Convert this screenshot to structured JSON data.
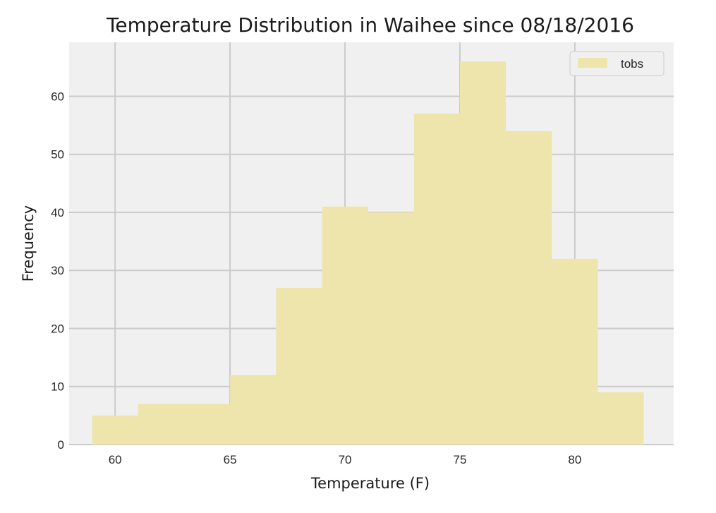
{
  "chart_data": {
    "type": "bar",
    "title": "Temperature Distribution in Waihee since 08/18/2016",
    "xlabel": "Temperature (F)",
    "ylabel": "Frequency",
    "xlim": [
      58,
      84.3
    ],
    "ylim": [
      0,
      69.3
    ],
    "xticks": [
      60,
      65,
      70,
      75,
      80
    ],
    "yticks": [
      0,
      10,
      20,
      30,
      40,
      50,
      60
    ],
    "grid": true,
    "legend_position": "top-right",
    "series": [
      {
        "name": "tobs",
        "color": "#ede5ab",
        "bin_edges": [
          59,
          61,
          63,
          65,
          67,
          69,
          71,
          73,
          75,
          77,
          79,
          81,
          83
        ],
        "counts": [
          5,
          7,
          7,
          12,
          27,
          41,
          40,
          57,
          66,
          54,
          32,
          9
        ]
      }
    ]
  },
  "colors": {
    "background": "#ffffff",
    "plot_background": "#f0f0f0",
    "grid": "#cbcbcb"
  }
}
